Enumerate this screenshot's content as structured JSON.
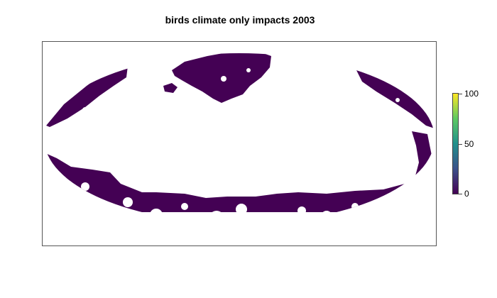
{
  "title": "birds climate only impacts 2003",
  "legend": {
    "ticks": [
      {
        "value": 100,
        "label": "100"
      },
      {
        "value": 50,
        "label": "50"
      },
      {
        "value": 0,
        "label": "0"
      }
    ],
    "min": 0,
    "max": 100,
    "palette": "viridis"
  },
  "colors": {
    "impact": "#440154",
    "frame": "#555555",
    "background": "#ffffff"
  },
  "map": {
    "projection": "Mollweide",
    "shown_value": 0
  }
}
